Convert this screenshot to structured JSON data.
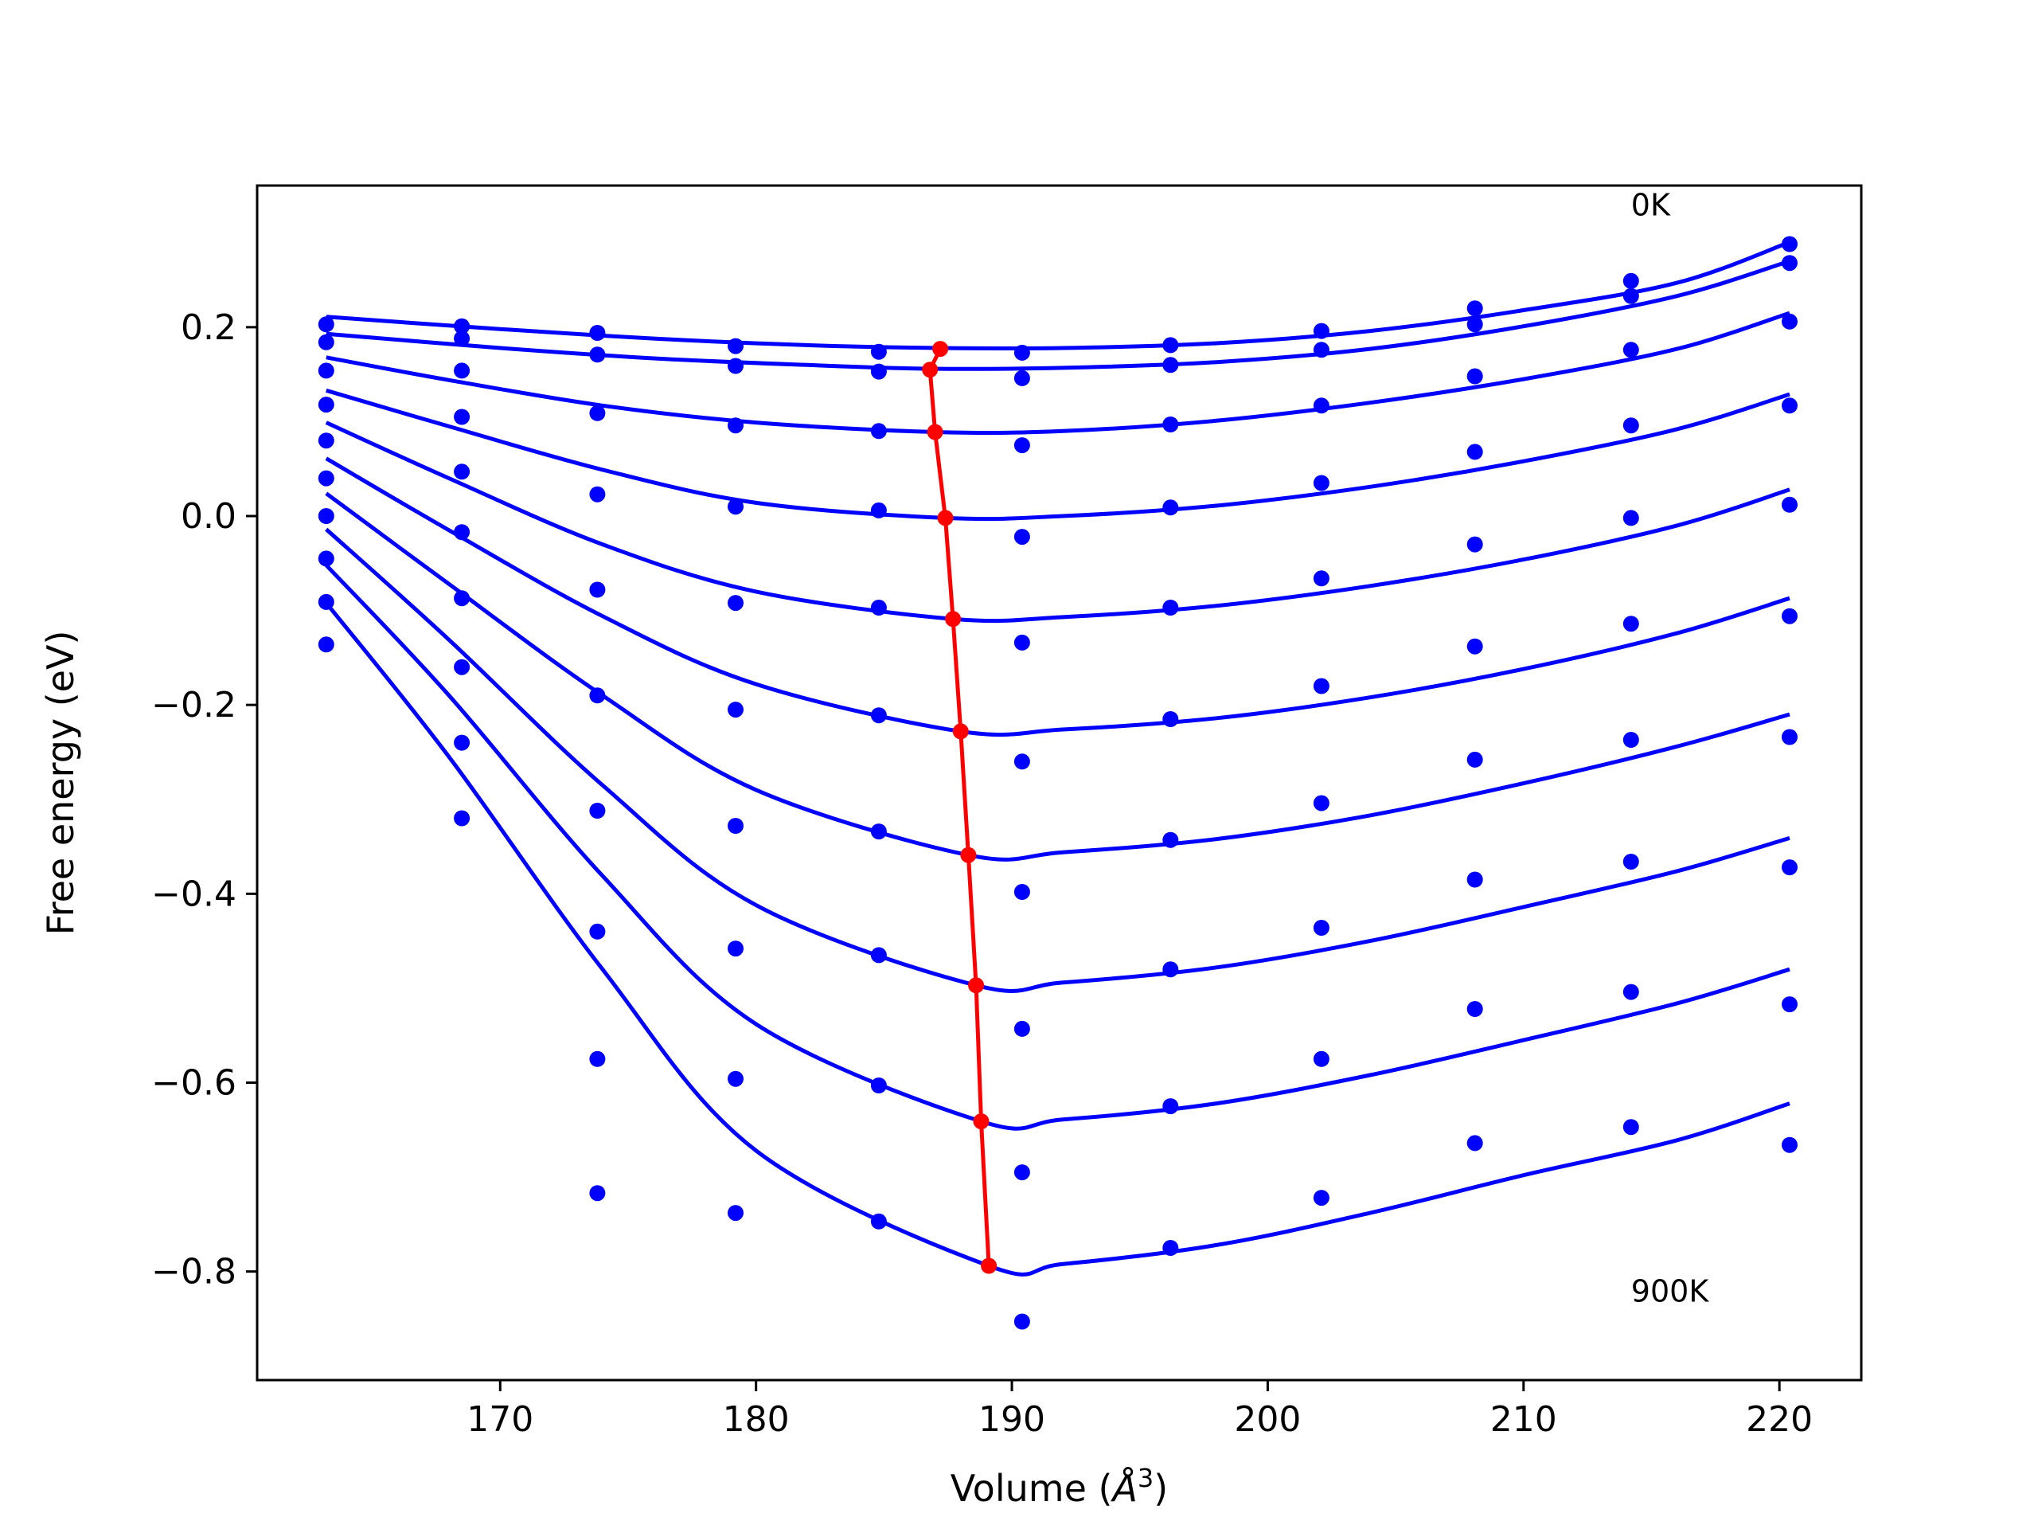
{
  "chart_data": {
    "type": "line",
    "title": "",
    "xlabel": "Volume ($\\AA^3$)",
    "xlabel_parts": {
      "prefix": "Volume (",
      "unit": "Å",
      "power": "3",
      "suffix": ")"
    },
    "ylabel": "Free energy (eV)",
    "xlim": [
      160.5,
      223.2
    ],
    "ylim": [
      -0.915,
      0.35
    ],
    "xticks": [
      170,
      180,
      190,
      200,
      210,
      220
    ],
    "yticks": [
      0.2,
      0.0,
      -0.2,
      -0.4,
      -0.6,
      -0.8
    ],
    "xtick_labels": [
      "170",
      "180",
      "190",
      "200",
      "210",
      "220"
    ],
    "ytick_labels": [
      "0.2",
      "0.0",
      "−0.2",
      "−0.4",
      "−0.6",
      "−0.8"
    ],
    "grid": false,
    "legend": "none",
    "annotations": [
      {
        "text": "0K",
        "x": 214.2,
        "y": 0.33
      },
      {
        "text": "900K",
        "x": 214.2,
        "y": -0.82
      }
    ],
    "colors": {
      "fit": "#0000ff",
      "points": "#0000ff",
      "minimum": "#ff0000",
      "frame": "#000000"
    },
    "volumes": [
      163.2,
      168.5,
      173.8,
      179.2,
      184.8,
      190.4,
      196.2,
      202.1,
      208.1,
      214.2,
      220.4
    ],
    "series": [
      {
        "points": [
          0.203,
          0.201,
          0.194,
          0.18,
          0.174,
          0.173,
          0.181,
          0.196,
          0.22,
          0.249,
          0.288
        ],
        "fit": [
          [
            163.2,
            0.211
          ],
          [
            170,
            0.198
          ],
          [
            176,
            0.188
          ],
          [
            182,
            0.181
          ],
          [
            187.2,
            0.178
          ],
          [
            192,
            0.178
          ],
          [
            198,
            0.183
          ],
          [
            204,
            0.196
          ],
          [
            210,
            0.218
          ],
          [
            216,
            0.247
          ],
          [
            220.4,
            0.29
          ]
        ]
      },
      {
        "points": [
          0.184,
          0.188,
          0.171,
          0.159,
          0.153,
          0.146,
          0.16,
          0.176,
          0.203,
          0.233,
          0.268
        ],
        "fit": [
          [
            163.2,
            0.193
          ],
          [
            170,
            0.178
          ],
          [
            176,
            0.167
          ],
          [
            182,
            0.16
          ],
          [
            186.8,
            0.156
          ],
          [
            192,
            0.157
          ],
          [
            198,
            0.163
          ],
          [
            204,
            0.177
          ],
          [
            210,
            0.201
          ],
          [
            216,
            0.233
          ],
          [
            220.4,
            0.27
          ]
        ]
      },
      {
        "points": [
          0.154,
          0.154,
          0.109,
          0.096,
          0.09,
          0.075,
          0.097,
          0.117,
          0.148,
          0.176,
          0.206
        ],
        "fit": [
          [
            163.2,
            0.168
          ],
          [
            168,
            0.144
          ],
          [
            174,
            0.117
          ],
          [
            180,
            0.099
          ],
          [
            187.0,
            0.089
          ],
          [
            192,
            0.09
          ],
          [
            198,
            0.101
          ],
          [
            204,
            0.12
          ],
          [
            210,
            0.145
          ],
          [
            216,
            0.177
          ],
          [
            220.4,
            0.215
          ]
        ]
      },
      {
        "points": [
          0.118,
          0.105,
          0.023,
          0.01,
          0.006,
          -0.022,
          0.009,
          0.035,
          0.068,
          0.096,
          0.117
        ],
        "fit": [
          [
            163.2,
            0.133
          ],
          [
            168,
            0.095
          ],
          [
            174,
            0.049
          ],
          [
            180,
            0.014
          ],
          [
            187.4,
            -0.002
          ],
          [
            192,
            0.0
          ],
          [
            198,
            0.011
          ],
          [
            204,
            0.031
          ],
          [
            210,
            0.058
          ],
          [
            216,
            0.092
          ],
          [
            220.4,
            0.129
          ]
        ]
      },
      {
        "points": [
          0.08,
          0.047,
          -0.078,
          -0.092,
          -0.097,
          -0.134,
          -0.097,
          -0.066,
          -0.03,
          -0.002,
          0.012
        ],
        "fit": [
          [
            163.2,
            0.099
          ],
          [
            168,
            0.04
          ],
          [
            174,
            -0.03
          ],
          [
            180,
            -0.08
          ],
          [
            187.7,
            -0.109
          ],
          [
            192,
            -0.107
          ],
          [
            198,
            -0.095
          ],
          [
            204,
            -0.074
          ],
          [
            210,
            -0.046
          ],
          [
            216,
            -0.01
          ],
          [
            220.4,
            0.028
          ]
        ]
      },
      {
        "points": [
          0.04,
          -0.017,
          -0.19,
          -0.205,
          -0.211,
          -0.26,
          -0.215,
          -0.18,
          -0.138,
          -0.114,
          -0.106
        ],
        "fit": [
          [
            163.2,
            0.061
          ],
          [
            168,
            -0.015
          ],
          [
            174,
            -0.106
          ],
          [
            180,
            -0.178
          ],
          [
            188.0,
            -0.228
          ],
          [
            192,
            -0.226
          ],
          [
            198,
            -0.214
          ],
          [
            204,
            -0.192
          ],
          [
            210,
            -0.162
          ],
          [
            216,
            -0.124
          ],
          [
            220.4,
            -0.087
          ]
        ]
      },
      {
        "points": [
          0.0,
          -0.087,
          -0.312,
          -0.328,
          -0.334,
          -0.398,
          -0.343,
          -0.304,
          -0.258,
          -0.237,
          -0.234
        ],
        "fit": [
          [
            163.2,
            0.024
          ],
          [
            168,
            -0.072
          ],
          [
            174,
            -0.19
          ],
          [
            180,
            -0.29
          ],
          [
            188.3,
            -0.359
          ],
          [
            192,
            -0.356
          ],
          [
            198,
            -0.342
          ],
          [
            204,
            -0.317
          ],
          [
            210,
            -0.283
          ],
          [
            216,
            -0.244
          ],
          [
            220.4,
            -0.21
          ]
        ]
      },
      {
        "points": [
          -0.045,
          -0.16,
          -0.44,
          -0.458,
          -0.465,
          -0.543,
          -0.48,
          -0.436,
          -0.385,
          -0.366,
          -0.372
        ],
        "fit": [
          [
            163.2,
            -0.014
          ],
          [
            168,
            -0.131
          ],
          [
            174,
            -0.285
          ],
          [
            180,
            -0.412
          ],
          [
            188.6,
            -0.497
          ],
          [
            192,
            -0.494
          ],
          [
            198,
            -0.478
          ],
          [
            204,
            -0.45
          ],
          [
            210,
            -0.414
          ],
          [
            216,
            -0.376
          ],
          [
            220.4,
            -0.341
          ]
        ]
      },
      {
        "points": [
          -0.091,
          -0.24,
          -0.575,
          -0.596,
          -0.603,
          -0.695,
          -0.625,
          -0.575,
          -0.522,
          -0.504,
          -0.517
        ],
        "fit": [
          [
            163.2,
            -0.052
          ],
          [
            168,
            -0.19
          ],
          [
            174,
            -0.381
          ],
          [
            180,
            -0.538
          ],
          [
            188.8,
            -0.641
          ],
          [
            192,
            -0.639
          ],
          [
            198,
            -0.622
          ],
          [
            204,
            -0.592
          ],
          [
            210,
            -0.555
          ],
          [
            216,
            -0.516
          ],
          [
            220.4,
            -0.48
          ]
        ]
      },
      {
        "points": [
          -0.136,
          -0.32,
          -0.717,
          -0.738,
          -0.747,
          -0.853,
          -0.775,
          -0.722,
          -0.664,
          -0.647,
          -0.666
        ],
        "fit": [
          [
            163.2,
            -0.092
          ],
          [
            168,
            -0.255
          ],
          [
            174,
            -0.48
          ],
          [
            180,
            -0.672
          ],
          [
            189.1,
            -0.794
          ],
          [
            192,
            -0.792
          ],
          [
            198,
            -0.772
          ],
          [
            204,
            -0.738
          ],
          [
            210,
            -0.698
          ],
          [
            216,
            -0.661
          ],
          [
            220.4,
            -0.622
          ]
        ]
      }
    ],
    "minimum_curve": {
      "x": [
        187.2,
        186.8,
        187.0,
        187.4,
        187.7,
        188.0,
        188.3,
        188.6,
        188.8,
        189.1
      ],
      "y": [
        0.177,
        0.155,
        0.089,
        -0.002,
        -0.109,
        -0.228,
        -0.359,
        -0.497,
        -0.641,
        -0.794
      ]
    }
  }
}
